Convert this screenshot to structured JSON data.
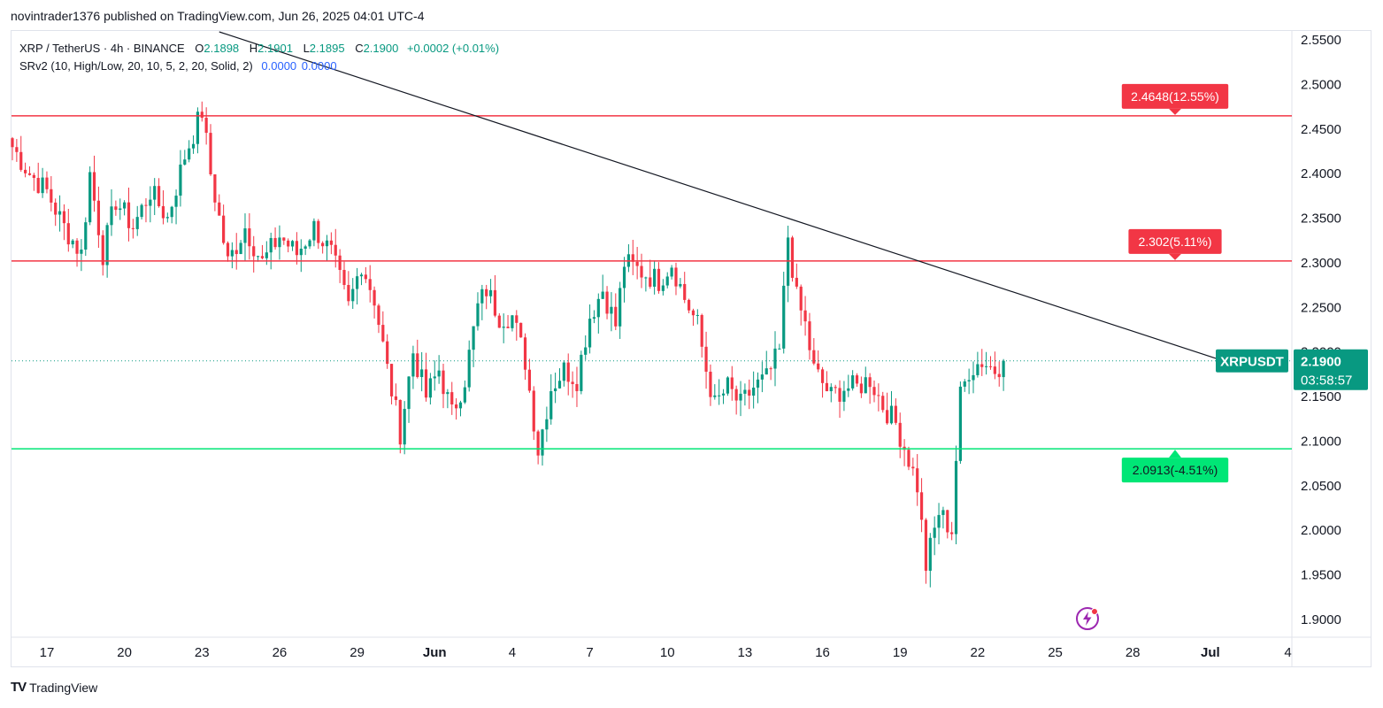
{
  "header": {
    "publish_line": "novintrader1376 published on TradingView.com, Jun 26, 2025 04:01 UTC-4"
  },
  "legend": {
    "symbol": "XRP / TetherUS · 4h · BINANCE",
    "open_label": "O",
    "open": "2.1898",
    "high_label": "H",
    "high": "2.1901",
    "low_label": "L",
    "low": "2.1895",
    "close_label": "C",
    "close": "2.1900",
    "change": "+0.0002 (+0.01%)",
    "indicator": "SRv2 (10, High/Low, 20, 10, 5, 2, 20, Solid, 2)",
    "indicator_val1": "0.0000",
    "indicator_val2": "0.0000"
  },
  "footer": {
    "brand": "TradingView",
    "logo": "TV"
  },
  "colors": {
    "up": "#089981",
    "down": "#f23645",
    "resistance": "#f23645",
    "support": "#00e676",
    "trendline": "#131722"
  },
  "chart_data": {
    "type": "candlestick",
    "symbol": "XRPUSDT",
    "interval": "4h",
    "ylim": [
      1.88,
      2.56
    ],
    "y_ticks": [
      "2.5500",
      "2.5000",
      "2.4500",
      "2.4000",
      "2.3500",
      "2.3000",
      "2.2500",
      "2.2000",
      "2.1500",
      "2.1000",
      "2.0500",
      "2.0000",
      "1.9500",
      "1.9000"
    ],
    "x_ticks": [
      {
        "label": "17",
        "bar": 8
      },
      {
        "label": "20",
        "bar": 26
      },
      {
        "label": "23",
        "bar": 44
      },
      {
        "label": "26",
        "bar": 62
      },
      {
        "label": "29",
        "bar": 80
      },
      {
        "label": "Jun",
        "bar": 98
      },
      {
        "label": "4",
        "bar": 116
      },
      {
        "label": "7",
        "bar": 134
      },
      {
        "label": "10",
        "bar": 152
      },
      {
        "label": "13",
        "bar": 170
      },
      {
        "label": "16",
        "bar": 188
      },
      {
        "label": "19",
        "bar": 206
      },
      {
        "label": "22",
        "bar": 224
      },
      {
        "label": "25",
        "bar": 242
      },
      {
        "label": "28",
        "bar": 260
      },
      {
        "label": "Jul",
        "bar": 278
      },
      {
        "label": "4",
        "bar": 296
      }
    ],
    "levels": [
      {
        "price": 2.4648,
        "label": "2.4648(12.55%)",
        "kind": "resistance"
      },
      {
        "price": 2.302,
        "label": "2.302(5.11%)",
        "kind": "resistance"
      },
      {
        "price": 2.0913,
        "label": "2.0913(-4.51%)",
        "kind": "support"
      }
    ],
    "trendline": {
      "from": {
        "bar": 48,
        "price": 2.559
      },
      "to": {
        "bar": 281,
        "price": 2.19
      }
    },
    "last_price": {
      "symbol_label": "XRPUSDT",
      "price": "2.1900",
      "countdown": "03:58:57"
    },
    "anchors": [
      [
        0,
        2.43
      ],
      [
        4,
        2.4
      ],
      [
        8,
        2.38
      ],
      [
        12,
        2.34
      ],
      [
        16,
        2.31
      ],
      [
        18,
        2.4
      ],
      [
        21,
        2.31
      ],
      [
        24,
        2.37
      ],
      [
        28,
        2.34
      ],
      [
        32,
        2.38
      ],
      [
        36,
        2.35
      ],
      [
        40,
        2.42
      ],
      [
        44,
        2.47
      ],
      [
        46,
        2.4
      ],
      [
        50,
        2.3
      ],
      [
        54,
        2.34
      ],
      [
        58,
        2.3
      ],
      [
        62,
        2.33
      ],
      [
        66,
        2.31
      ],
      [
        70,
        2.34
      ],
      [
        74,
        2.31
      ],
      [
        78,
        2.25
      ],
      [
        81,
        2.3
      ],
      [
        84,
        2.26
      ],
      [
        87,
        2.18
      ],
      [
        90,
        2.11
      ],
      [
        93,
        2.2
      ],
      [
        96,
        2.15
      ],
      [
        99,
        2.18
      ],
      [
        102,
        2.13
      ],
      [
        105,
        2.17
      ],
      [
        108,
        2.25
      ],
      [
        110,
        2.27
      ],
      [
        113,
        2.24
      ],
      [
        116,
        2.24
      ],
      [
        119,
        2.19
      ],
      [
        122,
        2.09
      ],
      [
        125,
        2.16
      ],
      [
        128,
        2.18
      ],
      [
        131,
        2.17
      ],
      [
        134,
        2.24
      ],
      [
        137,
        2.27
      ],
      [
        140,
        2.23
      ],
      [
        142,
        2.3
      ],
      [
        146,
        2.29
      ],
      [
        150,
        2.28
      ],
      [
        153,
        2.3
      ],
      [
        156,
        2.26
      ],
      [
        159,
        2.23
      ],
      [
        161,
        2.18
      ],
      [
        163,
        2.14
      ],
      [
        166,
        2.16
      ],
      [
        169,
        2.14
      ],
      [
        172,
        2.16
      ],
      [
        175,
        2.17
      ],
      [
        178,
        2.2
      ],
      [
        180,
        2.33
      ],
      [
        182,
        2.26
      ],
      [
        184,
        2.23
      ],
      [
        186,
        2.18
      ],
      [
        190,
        2.15
      ],
      [
        193,
        2.16
      ],
      [
        196,
        2.16
      ],
      [
        199,
        2.17
      ],
      [
        202,
        2.14
      ],
      [
        205,
        2.12
      ],
      [
        208,
        2.08
      ],
      [
        210,
        2.05
      ],
      [
        212,
        1.96
      ],
      [
        215,
        2.02
      ],
      [
        218,
        2.0
      ],
      [
        219,
        2.08
      ],
      [
        220,
        2.15
      ],
      [
        222,
        2.18
      ],
      [
        225,
        2.19
      ],
      [
        228,
        2.18
      ],
      [
        230,
        2.19
      ]
    ]
  }
}
